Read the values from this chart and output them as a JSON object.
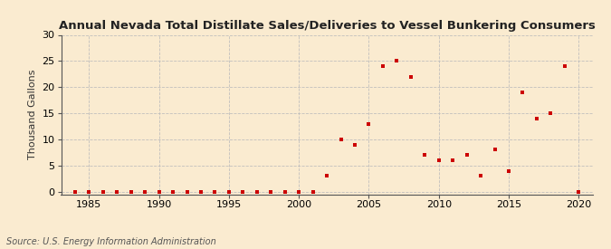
{
  "title": "Annual Nevada Total Distillate Sales/Deliveries to Vessel Bunkering Consumers",
  "ylabel": "Thousand Gallons",
  "source": "Source: U.S. Energy Information Administration",
  "background_color": "#faebd0",
  "plot_bg_color": "#faebd0",
  "grid_color": "#bbbbbb",
  "marker_color": "#cc0000",
  "xlim": [
    1983,
    2021
  ],
  "ylim": [
    -0.5,
    30
  ],
  "yticks": [
    0,
    5,
    10,
    15,
    20,
    25,
    30
  ],
  "xticks": [
    1985,
    1990,
    1995,
    2000,
    2005,
    2010,
    2015,
    2020
  ],
  "data": [
    [
      1984,
      0
    ],
    [
      1985,
      0
    ],
    [
      1986,
      0
    ],
    [
      1987,
      0
    ],
    [
      1988,
      0
    ],
    [
      1989,
      0
    ],
    [
      1990,
      0
    ],
    [
      1991,
      0
    ],
    [
      1992,
      0
    ],
    [
      1993,
      0
    ],
    [
      1994,
      0
    ],
    [
      1995,
      0
    ],
    [
      1996,
      0
    ],
    [
      1997,
      0
    ],
    [
      1998,
      0
    ],
    [
      1999,
      0
    ],
    [
      2000,
      0
    ],
    [
      2001,
      0
    ],
    [
      2002,
      3
    ],
    [
      2003,
      10
    ],
    [
      2004,
      9
    ],
    [
      2005,
      13
    ],
    [
      2006,
      24
    ],
    [
      2007,
      25
    ],
    [
      2008,
      22
    ],
    [
      2009,
      7
    ],
    [
      2010,
      6
    ],
    [
      2011,
      6
    ],
    [
      2012,
      7
    ],
    [
      2013,
      3
    ],
    [
      2014,
      8
    ],
    [
      2015,
      4
    ],
    [
      2016,
      19
    ],
    [
      2017,
      14
    ],
    [
      2018,
      15
    ],
    [
      2019,
      24
    ],
    [
      2020,
      0
    ]
  ],
  "title_fontsize": 9.5,
  "ylabel_fontsize": 8,
  "tick_fontsize": 8,
  "source_fontsize": 7
}
